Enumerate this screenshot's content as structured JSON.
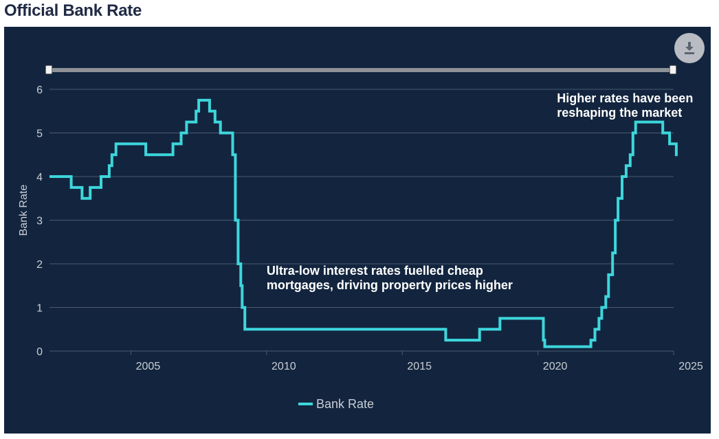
{
  "page": {
    "title": "Official Bank Rate"
  },
  "icons": {
    "download": "download-icon"
  },
  "colors": {
    "panel_background": "#13253e",
    "series_line": "#3dd6dc",
    "gridline": "#4a5a72",
    "tick_text": "#c9ced6",
    "annotation_text": "#ffffff",
    "title_text": "#1f2a44"
  },
  "chart_data": {
    "type": "line",
    "title": "Official Bank Rate",
    "xlabel": "",
    "ylabel": "Bank Rate",
    "xlim": [
      2002.0,
      2025.0
    ],
    "ylim": [
      0,
      6
    ],
    "x_ticks": [
      2005,
      2010,
      2015,
      2020,
      2025
    ],
    "y_ticks": [
      0,
      1,
      2,
      3,
      4,
      5,
      6
    ],
    "grid": "horizontal",
    "legend": "bottom-center",
    "step": true,
    "series": [
      {
        "name": "Bank Rate",
        "points": [
          [
            2002.0,
            4.0
          ],
          [
            2002.8,
            3.75
          ],
          [
            2003.2,
            3.5
          ],
          [
            2003.5,
            3.75
          ],
          [
            2003.9,
            4.0
          ],
          [
            2004.2,
            4.25
          ],
          [
            2004.3,
            4.5
          ],
          [
            2004.45,
            4.75
          ],
          [
            2005.55,
            4.5
          ],
          [
            2006.55,
            4.75
          ],
          [
            2006.85,
            5.0
          ],
          [
            2007.05,
            5.25
          ],
          [
            2007.4,
            5.5
          ],
          [
            2007.5,
            5.75
          ],
          [
            2007.9,
            5.5
          ],
          [
            2008.1,
            5.25
          ],
          [
            2008.3,
            5.0
          ],
          [
            2008.75,
            4.5
          ],
          [
            2008.85,
            3.0
          ],
          [
            2008.95,
            2.0
          ],
          [
            2009.05,
            1.5
          ],
          [
            2009.1,
            1.0
          ],
          [
            2009.2,
            0.5
          ],
          [
            2016.6,
            0.25
          ],
          [
            2017.85,
            0.5
          ],
          [
            2018.6,
            0.75
          ],
          [
            2020.2,
            0.25
          ],
          [
            2020.25,
            0.1
          ],
          [
            2021.95,
            0.25
          ],
          [
            2022.1,
            0.5
          ],
          [
            2022.25,
            0.75
          ],
          [
            2022.35,
            1.0
          ],
          [
            2022.5,
            1.25
          ],
          [
            2022.6,
            1.75
          ],
          [
            2022.75,
            2.25
          ],
          [
            2022.85,
            3.0
          ],
          [
            2022.95,
            3.5
          ],
          [
            2023.1,
            4.0
          ],
          [
            2023.25,
            4.25
          ],
          [
            2023.4,
            4.5
          ],
          [
            2023.5,
            5.0
          ],
          [
            2023.6,
            5.25
          ],
          [
            2024.6,
            5.0
          ],
          [
            2024.85,
            4.75
          ],
          [
            2025.1,
            4.5
          ],
          [
            2025.15,
            4.5
          ]
        ]
      }
    ],
    "annotations": [
      {
        "lines": [
          "Ultra-low interest rates fuelled cheap",
          "mortgages, driving property prices higher"
        ],
        "x": 2010.0,
        "y": 1.75
      },
      {
        "lines": [
          "Higher rates have been",
          "reshaping the market"
        ],
        "x": 2020.7,
        "y": 5.7
      }
    ]
  }
}
